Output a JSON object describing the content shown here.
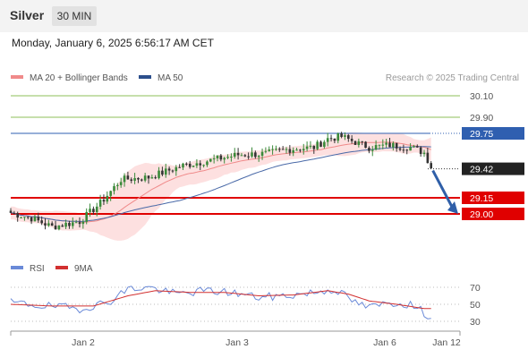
{
  "header": {
    "instrument": "Silver",
    "timeframe": "30 MIN",
    "datetime": "Monday, January 6, 2025 6:56:17 AM CET"
  },
  "legend": {
    "ma20_label": "MA 20 + Bollinger Bands",
    "ma50_label": "MA 50",
    "credit": "Research © 2025 Trading Central"
  },
  "rsi_legend": {
    "rsi_label": "RSI",
    "ma_label": "9MA"
  },
  "colors": {
    "up": "#3a8a3a",
    "down": "#333333",
    "bollinger": "#fde0e0",
    "ma20": "#f08a8a",
    "ma50": "#4a6aa8",
    "support": "#e00000",
    "resistance": "#8cbf5a",
    "pivot": "#2f5fb0",
    "rsi": "#6a8ad8",
    "rsi_ma": "#d23030",
    "arrow": "#2f5fa8"
  },
  "chart_data": [
    {
      "type": "candlestick",
      "x_ticks": [
        "Jan 2",
        "Jan 3",
        "Jan 6",
        "Jan 12"
      ],
      "price_levels": [
        {
          "label": "30.10",
          "value": 30.1,
          "kind": "resistance"
        },
        {
          "label": "29.90",
          "value": 29.9,
          "kind": "resistance"
        },
        {
          "label": "29.75",
          "value": 29.75,
          "kind": "pivot"
        },
        {
          "label": "29.42",
          "value": 29.42,
          "kind": "last"
        },
        {
          "label": "29.15",
          "value": 29.15,
          "kind": "support"
        },
        {
          "label": "29.00",
          "value": 29.0,
          "kind": "support"
        }
      ],
      "close_anchors": [
        [
          0,
          29.01
        ],
        [
          6,
          28.96
        ],
        [
          12,
          28.88
        ],
        [
          20,
          28.93
        ],
        [
          26,
          29.1
        ],
        [
          32,
          29.32
        ],
        [
          40,
          29.34
        ],
        [
          50,
          29.45
        ],
        [
          58,
          29.5
        ],
        [
          66,
          29.55
        ],
        [
          74,
          29.56
        ],
        [
          80,
          29.6
        ],
        [
          88,
          29.62
        ],
        [
          92,
          29.7
        ],
        [
          96,
          29.72
        ],
        [
          99,
          29.68
        ],
        [
          104,
          29.62
        ],
        [
          110,
          29.64
        ],
        [
          116,
          29.62
        ],
        [
          120,
          29.57
        ],
        [
          122,
          29.44
        ]
      ],
      "forecast": {
        "from": 29.42,
        "to": 29.0
      }
    },
    {
      "type": "line",
      "title": "RSI",
      "y_ticks": [
        70,
        50,
        30
      ],
      "ylim": [
        20,
        80
      ],
      "rsi_anchors": [
        [
          0,
          52
        ],
        [
          10,
          48
        ],
        [
          20,
          45
        ],
        [
          28,
          52
        ],
        [
          34,
          68
        ],
        [
          40,
          70
        ],
        [
          48,
          62
        ],
        [
          56,
          66
        ],
        [
          64,
          64
        ],
        [
          72,
          58
        ],
        [
          80,
          60
        ],
        [
          88,
          64
        ],
        [
          94,
          68
        ],
        [
          100,
          52
        ],
        [
          104,
          46
        ],
        [
          110,
          52
        ],
        [
          116,
          50
        ],
        [
          122,
          35
        ]
      ],
      "ma_anchors": [
        [
          0,
          50
        ],
        [
          12,
          48
        ],
        [
          24,
          48
        ],
        [
          34,
          60
        ],
        [
          42,
          66
        ],
        [
          52,
          64
        ],
        [
          62,
          64
        ],
        [
          72,
          60
        ],
        [
          82,
          61
        ],
        [
          92,
          66
        ],
        [
          98,
          62
        ],
        [
          104,
          54
        ],
        [
          112,
          50
        ],
        [
          120,
          45
        ]
      ]
    }
  ]
}
